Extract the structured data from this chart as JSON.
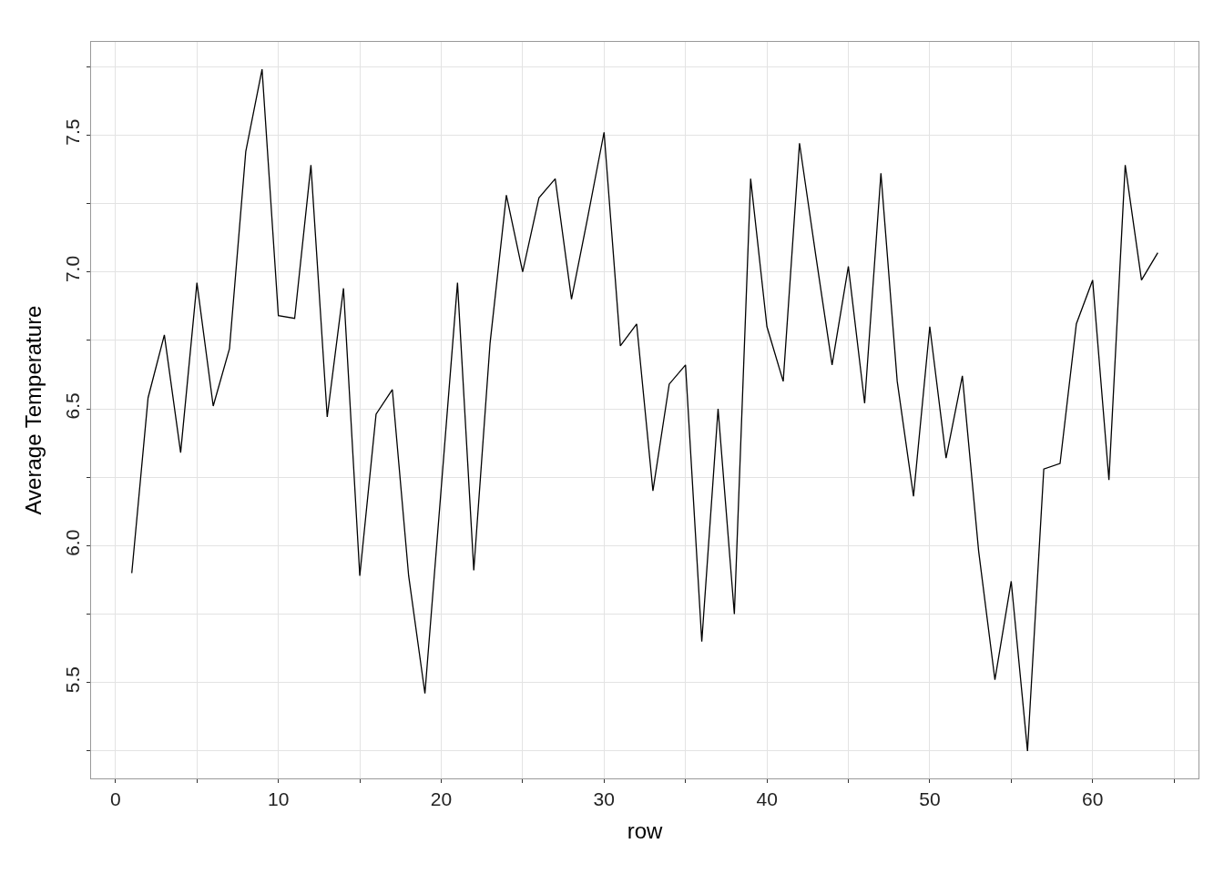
{
  "chart_data": {
    "type": "line",
    "xlabel": "row",
    "ylabel": "Average Temperature",
    "x": [
      1,
      2,
      3,
      4,
      5,
      6,
      7,
      8,
      9,
      10,
      11,
      12,
      13,
      14,
      15,
      16,
      17,
      18,
      19,
      20,
      21,
      22,
      23,
      24,
      25,
      26,
      27,
      28,
      29,
      30,
      31,
      32,
      33,
      34,
      35,
      36,
      37,
      38,
      39,
      40,
      41,
      42,
      43,
      44,
      45,
      46,
      47,
      48,
      49,
      50,
      51,
      52,
      53,
      54,
      55,
      56,
      57,
      58,
      59,
      60,
      61,
      62,
      63,
      64
    ],
    "series": [
      {
        "color": "#000000",
        "values": [
          5.9,
          6.54,
          6.77,
          6.34,
          6.96,
          6.51,
          6.72,
          7.44,
          7.74,
          6.84,
          6.83,
          7.39,
          6.47,
          6.94,
          5.89,
          6.48,
          6.57,
          5.89,
          5.46,
          6.21,
          6.96,
          5.91,
          6.74,
          7.28,
          7.0,
          7.27,
          7.34,
          6.9,
          7.2,
          7.51,
          6.73,
          6.81,
          6.2,
          6.59,
          6.66,
          5.65,
          6.5,
          5.75,
          7.34,
          6.8,
          6.6,
          7.47,
          7.06,
          6.66,
          7.02,
          6.52,
          7.36,
          6.6,
          6.18,
          6.8,
          6.32,
          6.62,
          5.98,
          5.51,
          5.87,
          5.25,
          6.28,
          6.3,
          6.81,
          6.97,
          6.24,
          7.39,
          6.97,
          7.07
        ]
      }
    ],
    "xlim": [
      -1.5,
      66.5
    ],
    "xticks": [
      0,
      {
        "value": 5,
        "label": null
      },
      10,
      {
        "value": 15,
        "label": null
      },
      20,
      {
        "value": 25,
        "label": null
      },
      30,
      {
        "value": 35,
        "label": null
      },
      40,
      {
        "value": 45,
        "label": null
      },
      50,
      {
        "value": 55,
        "label": null
      },
      60,
      {
        "value": 65,
        "label": null
      }
    ],
    "ylim": [
      5.15,
      7.84
    ],
    "yticks": [
      {
        "value": 5.25,
        "label": null
      },
      {
        "value": 5.5,
        "label": "5.5"
      },
      {
        "value": 5.75,
        "label": null
      },
      {
        "value": 6.0,
        "label": "6.0"
      },
      {
        "value": 6.25,
        "label": null
      },
      {
        "value": 6.5,
        "label": "6.5"
      },
      {
        "value": 6.75,
        "label": null
      },
      {
        "value": 7.0,
        "label": "7.0"
      },
      {
        "value": 7.25,
        "label": null
      },
      {
        "value": 7.5,
        "label": "7.5"
      },
      {
        "value": 7.75,
        "label": null
      }
    ],
    "grid": true,
    "marker": "none",
    "line_style": "solid"
  }
}
